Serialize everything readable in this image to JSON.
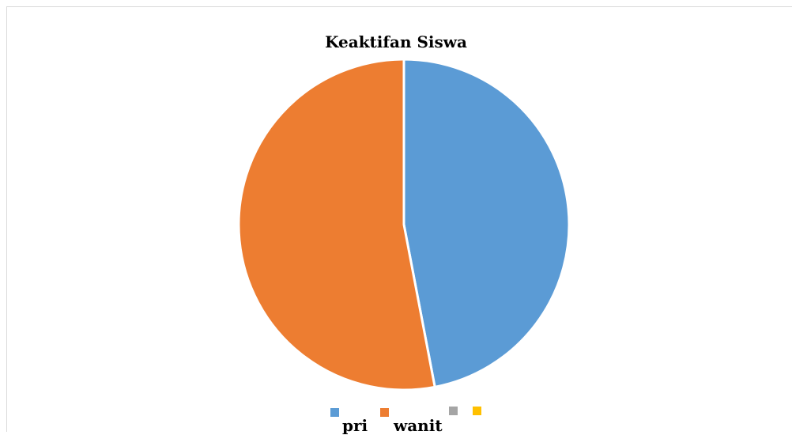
{
  "chart_data": {
    "type": "pie",
    "title": "Keaktifan Siswa",
    "series": [
      {
        "values": [
          {
            "label": "pri",
            "value": 47,
            "color": "#5B9BD5"
          },
          {
            "label": "wanit",
            "value": 53,
            "color": "#ED7D31"
          }
        ]
      }
    ],
    "legend": {
      "placement": "bottom",
      "entries": [
        {
          "label": "pri",
          "color": "#5B9BD5"
        },
        {
          "label": "wanit",
          "color": "#ED7D31"
        },
        {
          "label": "",
          "color": "#A5A5A5"
        },
        {
          "label": "",
          "color": "#FFC000"
        }
      ]
    }
  }
}
